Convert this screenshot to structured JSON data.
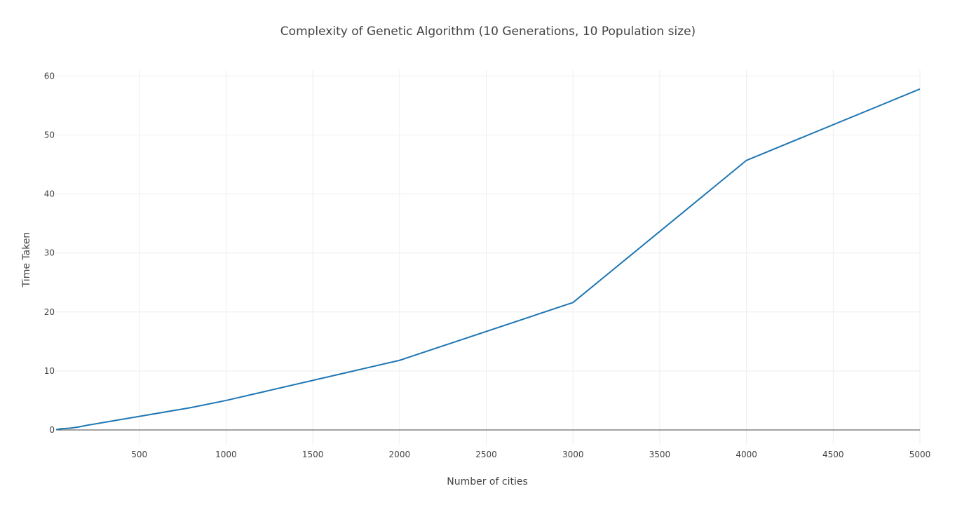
{
  "chart_data": {
    "type": "line",
    "title": "Complexity of Genetic Algorithm (10 Generations, 10 Population size)",
    "xlabel": "Number of cities",
    "ylabel": "Time Taken",
    "xlim": [
      20,
      5000
    ],
    "ylim": [
      -2.5,
      61
    ],
    "x_ticks": [
      500,
      1000,
      1500,
      2000,
      2500,
      3000,
      3500,
      4000,
      4500,
      5000
    ],
    "y_ticks": [
      0,
      10,
      20,
      30,
      40,
      50,
      60
    ],
    "x_tick_labels": [
      "500",
      "1000",
      "1500",
      "2000",
      "2500",
      "3000",
      "3500",
      "4000",
      "4500",
      "5000"
    ],
    "y_tick_labels": [
      "0",
      "10",
      "20",
      "30",
      "40",
      "50",
      "60"
    ],
    "grid": true,
    "legend": "none",
    "series_color": "#1f77b4",
    "x": [
      20,
      50,
      100,
      150,
      200,
      800,
      1000,
      2000,
      3000,
      4000,
      5000
    ],
    "y": [
      0.05,
      0.2,
      0.3,
      0.5,
      0.8,
      3.8,
      5.0,
      11.8,
      21.6,
      45.7,
      57.8
    ]
  }
}
